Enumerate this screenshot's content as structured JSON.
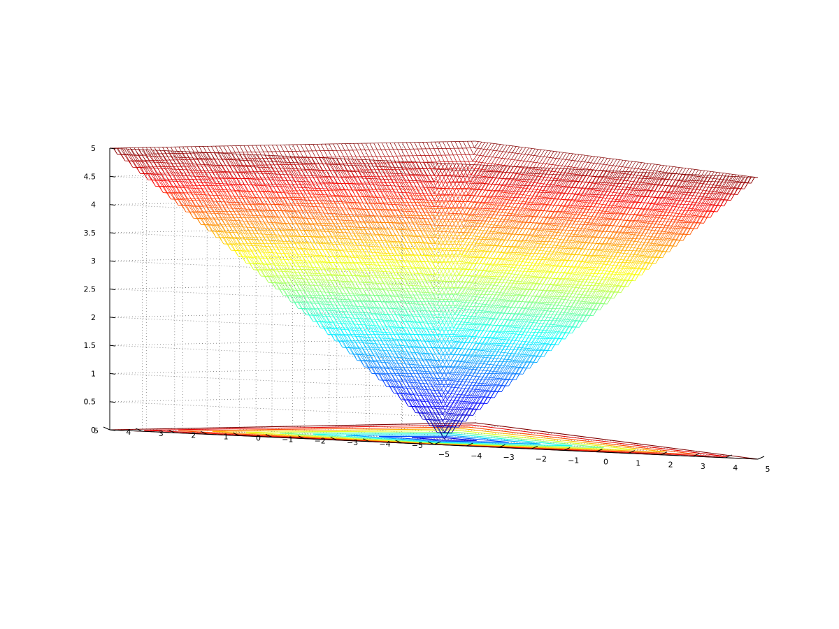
{
  "chart_data": {
    "type": "mesh3d",
    "function": "z = max(|x|, |y|)",
    "surface": "mesh + contour",
    "colormap": "jet",
    "x": {
      "range": [
        -5,
        5
      ],
      "ticks": [
        -5,
        -4,
        -3,
        -2,
        -1,
        0,
        1,
        2,
        3,
        4,
        5
      ]
    },
    "y": {
      "range": [
        -5,
        5
      ],
      "ticks": [
        -5,
        -4,
        -3,
        -2,
        -1,
        0,
        1,
        2,
        3,
        4,
        5
      ]
    },
    "z": {
      "range": [
        0,
        5
      ],
      "ticks": [
        "0",
        "0.5",
        "1",
        "1.5",
        "2",
        "2.5",
        "3",
        "3.5",
        "4",
        "4.5",
        "5"
      ]
    },
    "contour_levels": [
      0.5,
      1.0,
      1.5,
      2.0,
      2.5,
      3.0,
      3.5,
      4.0,
      4.5,
      5.0
    ],
    "grid": true,
    "title": "",
    "xlabel": "",
    "ylabel": "",
    "zlabel": ""
  }
}
